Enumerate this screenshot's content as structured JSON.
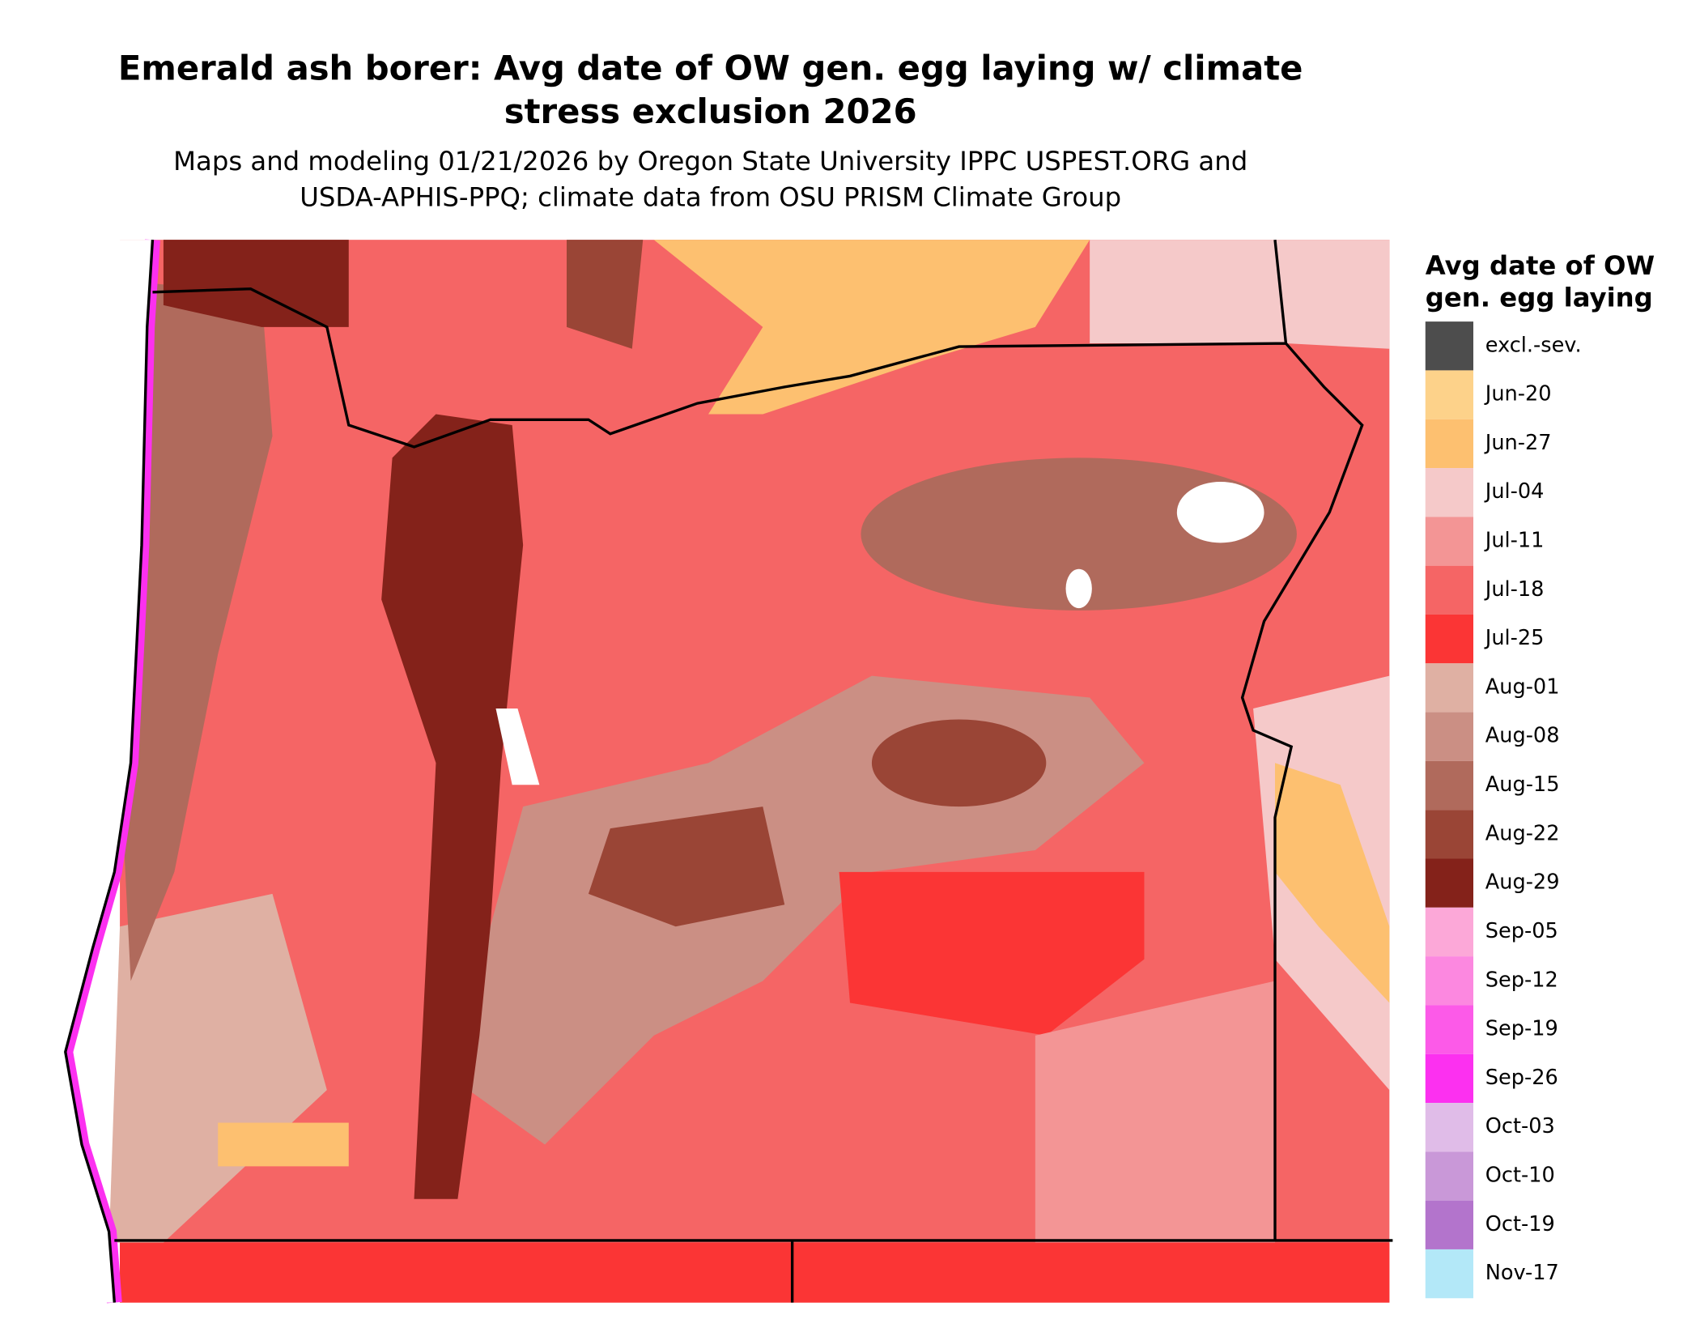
{
  "title": [
    "Emerald ash borer: Avg date of OW gen. egg laying w/ climate",
    "stress exclusion 2026"
  ],
  "subtitle": [
    "Maps and modeling 01/21/2026 by Oregon State University IPPC USPEST.ORG and",
    "USDA-APHIS-PPQ; climate data from OSU PRISM Climate Group"
  ],
  "legend": {
    "title": [
      "Avg date of OW",
      "gen. egg laying"
    ],
    "items": [
      {
        "label": "excl.-sev.",
        "color": "#4d4d4d"
      },
      {
        "label": "Jun-20",
        "color": "#fdd28a"
      },
      {
        "label": "Jun-27",
        "color": "#fdc070"
      },
      {
        "label": "Jul-04",
        "color": "#f5c9c9"
      },
      {
        "label": "Jul-11",
        "color": "#f39595"
      },
      {
        "label": "Jul-18",
        "color": "#f56565"
      },
      {
        "label": "Jul-25",
        "color": "#fb3535"
      },
      {
        "label": "Aug-01",
        "color": "#dfb0a3"
      },
      {
        "label": "Aug-08",
        "color": "#cb8f84"
      },
      {
        "label": "Aug-15",
        "color": "#b06a5c"
      },
      {
        "label": "Aug-22",
        "color": "#9a4536"
      },
      {
        "label": "Aug-29",
        "color": "#84221a"
      },
      {
        "label": "Sep-05",
        "color": "#fca8d8"
      },
      {
        "label": "Sep-12",
        "color": "#fc88e0"
      },
      {
        "label": "Sep-19",
        "color": "#fc5ae8"
      },
      {
        "label": "Sep-26",
        "color": "#fc30f0"
      },
      {
        "label": "Oct-03",
        "color": "#e0bce8"
      },
      {
        "label": "Oct-10",
        "color": "#c998d8"
      },
      {
        "label": "Oct-19",
        "color": "#b374cc"
      },
      {
        "label": "Nov-17",
        "color": "#b3e8f8"
      }
    ]
  }
}
